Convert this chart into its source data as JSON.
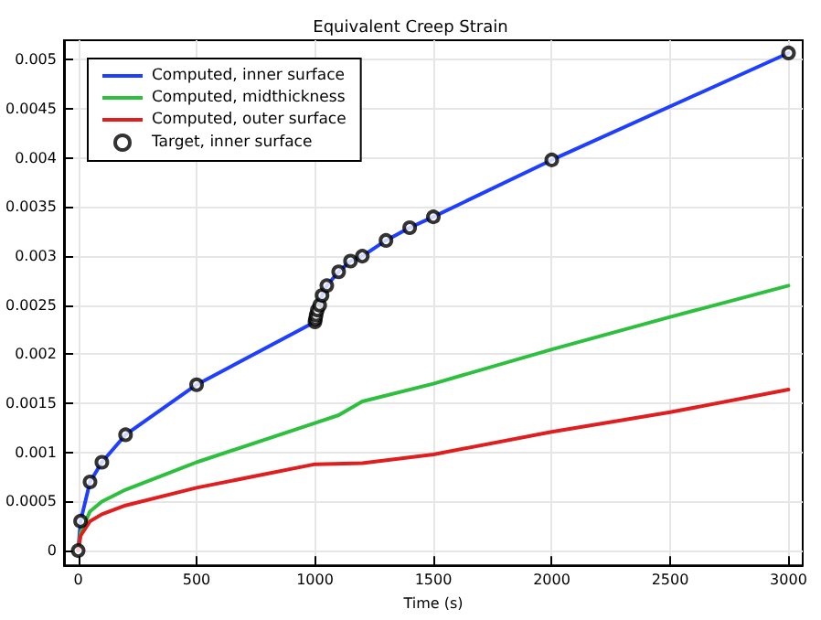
{
  "chart_data": {
    "type": "line",
    "title": "Equivalent Creep Strain",
    "xlabel": "Time (s)",
    "xlim": [
      -60,
      3060
    ],
    "xticks": [
      0,
      500,
      1000,
      1500,
      2000,
      2500,
      3000
    ],
    "ylim": [
      -0.00015,
      0.0052
    ],
    "yticks": [
      0,
      0.0005,
      0.001,
      0.0015,
      0.002,
      0.0025,
      0.003,
      0.0035,
      0.004,
      0.0045,
      0.005
    ],
    "grid": true,
    "legend": "top left",
    "marker": "none",
    "line_style": "solid",
    "series": [
      {
        "name": "Computed, inner surface",
        "color": "#1f3fff",
        "x": [
          0,
          10,
          50,
          100,
          200,
          500,
          1000,
          1002,
          1005,
          1010,
          1020,
          1030,
          1050,
          1100,
          1150,
          1200,
          1300,
          1400,
          1500,
          2000,
          3000
        ],
        "values": [
          0,
          0.0003,
          0.0007,
          0.0009,
          0.00118,
          0.00169,
          0.00233,
          0.00236,
          0.0024,
          0.00245,
          0.0025,
          0.0026,
          0.0027,
          0.00284,
          0.00295,
          0.003,
          0.00316,
          0.00329,
          0.0034,
          0.00398,
          0.00507
        ]
      },
      {
        "name": "Computed, midthickness",
        "color": "#2fbf3f",
        "x": [
          0,
          10,
          50,
          100,
          200,
          500,
          1000,
          1100,
          1200,
          1500,
          2000,
          2500,
          3000
        ],
        "values": [
          0,
          0.00018,
          0.0004,
          0.0005,
          0.00062,
          0.0009,
          0.0013,
          0.00138,
          0.00152,
          0.0017,
          0.00205,
          0.00238,
          0.0027
        ]
      },
      {
        "name": "Computed, outer surface",
        "color": "#df1f1f",
        "x": [
          0,
          10,
          50,
          100,
          200,
          500,
          1000,
          1200,
          1500,
          2000,
          2500,
          3000
        ],
        "values": [
          0,
          0.00015,
          0.0003,
          0.00037,
          0.00046,
          0.00064,
          0.00088,
          0.00089,
          0.00098,
          0.00121,
          0.00141,
          0.00164
        ]
      },
      {
        "name": "Target, inner surface",
        "type": "scatter",
        "marker": "circle",
        "color": "#000000",
        "x": [
          0,
          10,
          50,
          100,
          200,
          500,
          1000,
          1002,
          1005,
          1010,
          1020,
          1030,
          1050,
          1100,
          1150,
          1200,
          1300,
          1400,
          1500,
          2000,
          3000
        ],
        "values": [
          0,
          0.0003,
          0.0007,
          0.0009,
          0.00118,
          0.00169,
          0.00233,
          0.00236,
          0.0024,
          0.00245,
          0.0025,
          0.0026,
          0.0027,
          0.00284,
          0.00295,
          0.003,
          0.00316,
          0.00329,
          0.0034,
          0.00398,
          0.00507
        ]
      }
    ]
  }
}
